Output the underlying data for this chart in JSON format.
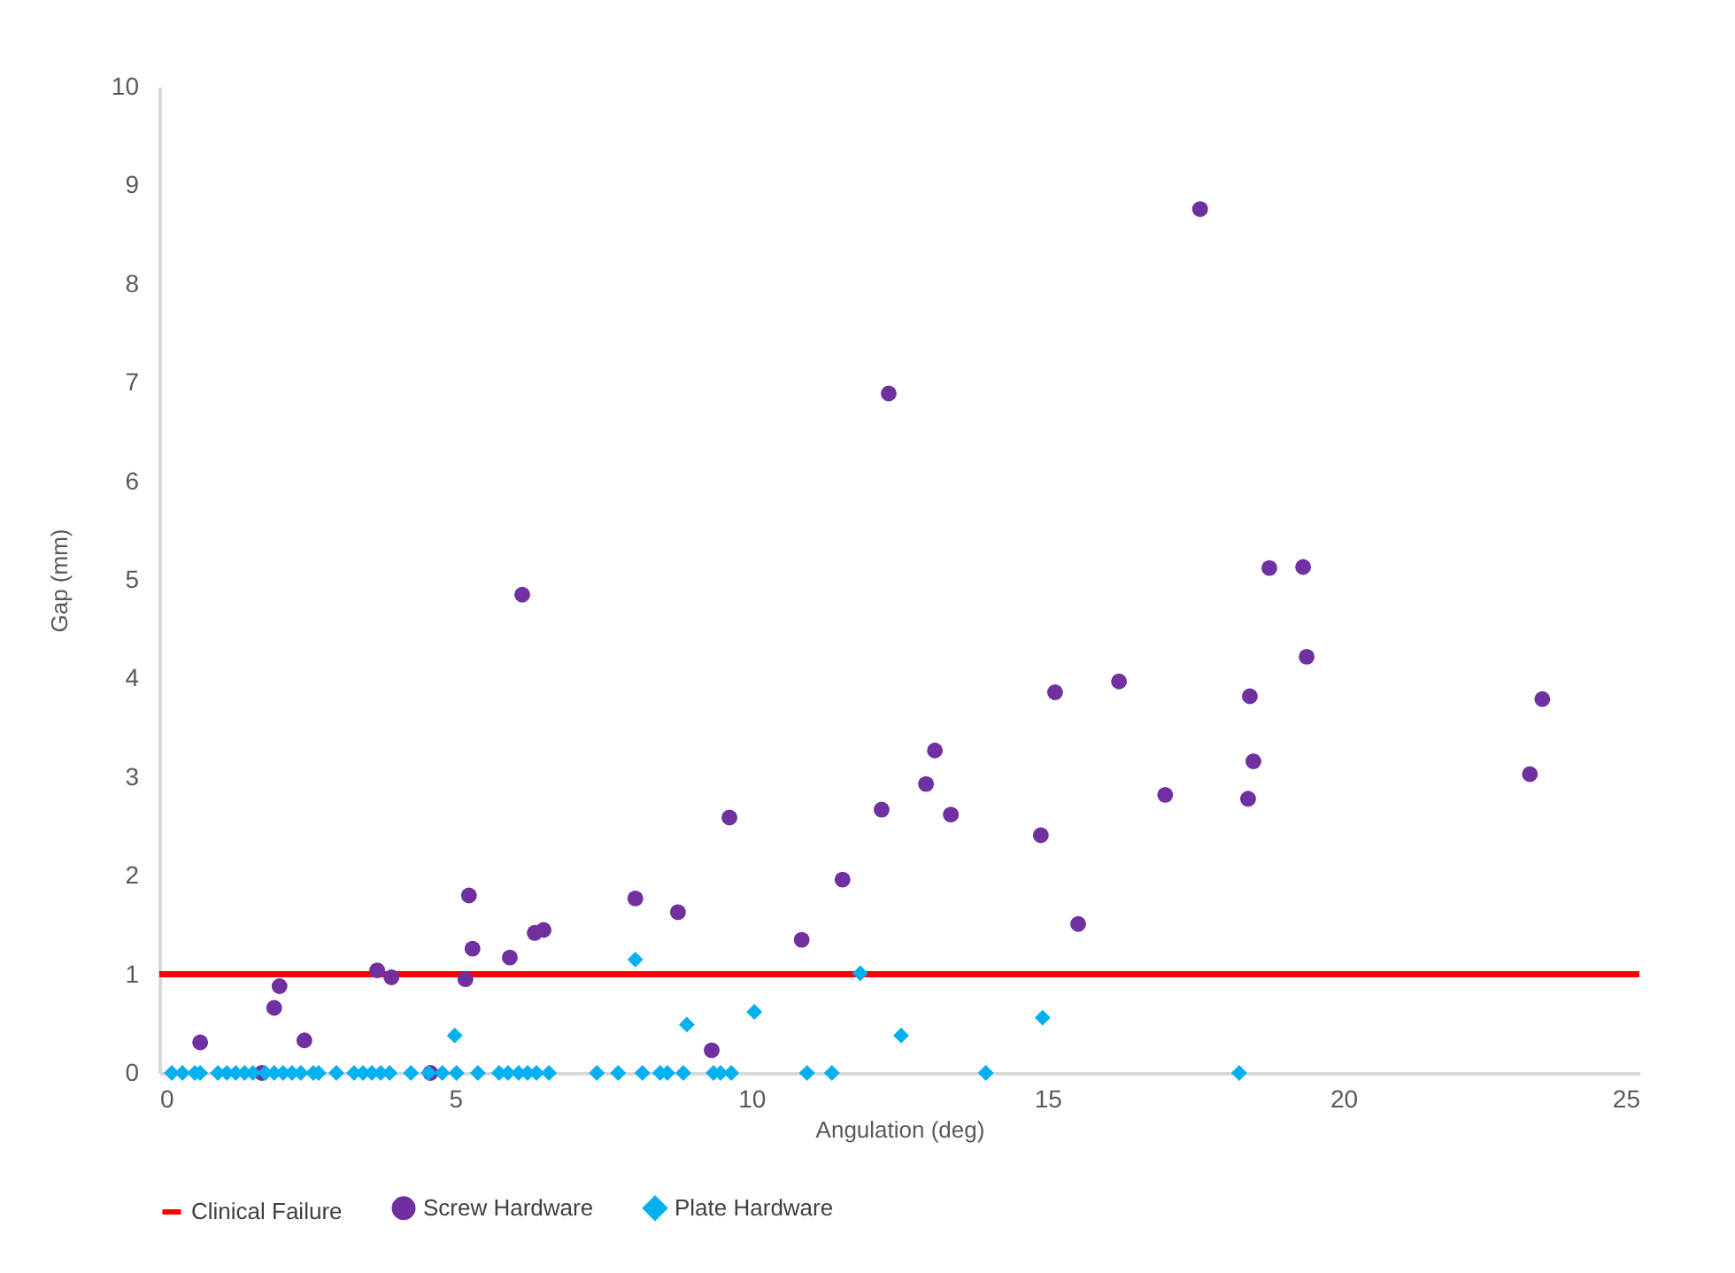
{
  "chart_data": {
    "type": "scatter",
    "xlabel": "Angulation (deg)",
    "ylabel": "Gap (mm)",
    "xlim": [
      0,
      25
    ],
    "xticks": [
      0,
      5,
      10,
      15,
      20,
      25
    ],
    "ylim": [
      0,
      10
    ],
    "yticks": [
      0,
      1,
      2,
      3,
      4,
      5,
      6,
      7,
      8,
      9,
      10
    ],
    "grid": false,
    "legend": "bottom",
    "ref_lines": [
      {
        "axis": "y",
        "value": 1,
        "label": "Clinical Failure",
        "color": "#ff0000",
        "line_style": "solid"
      }
    ],
    "series": [
      {
        "name": "Screw Hardware",
        "color": "#7030a0",
        "marker": "circle",
        "x": [
          0.69,
          1.94,
          2.03,
          2.45,
          1.73,
          3.68,
          3.92,
          4.58,
          5.17,
          5.23,
          5.29,
          5.92,
          6.34,
          6.49,
          6.13,
          8.04,
          8.76,
          9.33,
          9.63,
          10.85,
          11.54,
          12.2,
          12.32,
          12.95,
          13.1,
          13.37,
          14.89,
          15.13,
          15.52,
          16.21,
          16.99,
          17.58,
          18.39,
          18.42,
          18.48,
          18.75,
          19.32,
          19.38,
          23.15,
          23.36
        ],
        "values": [
          0.31,
          0.66,
          0.88,
          0.33,
          0,
          1.04,
          0.97,
          0,
          0.95,
          1.8,
          1.26,
          1.17,
          1.42,
          1.45,
          4.85,
          1.77,
          1.63,
          0.23,
          2.59,
          1.35,
          1.96,
          2.67,
          6.89,
          2.93,
          3.27,
          2.62,
          2.41,
          3.86,
          1.51,
          3.97,
          2.82,
          8.76,
          2.78,
          3.82,
          3.16,
          5.12,
          5.13,
          4.22,
          3.03,
          3.79
        ]
      },
      {
        "name": "Plate Hardware",
        "color": "#00b0f0",
        "marker": "diamond",
        "x": [
          0.21,
          0.39,
          0.6,
          0.69,
          0.99,
          1.14,
          1.29,
          1.44,
          1.58,
          1.79,
          1.94,
          2.09,
          2.24,
          2.39,
          2.6,
          2.69,
          2.99,
          3.29,
          3.44,
          3.59,
          3.74,
          3.89,
          4.25,
          4.55,
          4.78,
          5.02,
          5.38,
          5.74,
          5.89,
          6.07,
          6.22,
          6.37,
          6.58,
          4.99,
          7.39,
          7.75,
          8.16,
          8.46,
          8.58,
          8.85,
          9.36,
          9.48,
          9.66,
          10.94,
          11.36,
          13.96,
          8.04,
          8.91,
          10.05,
          11.84,
          12.53,
          14.92,
          18.24
        ],
        "values": [
          0,
          0,
          0,
          0,
          0,
          0,
          0,
          0,
          0,
          0,
          0,
          0,
          0,
          0,
          0,
          0,
          0,
          0,
          0,
          0,
          0,
          0,
          0,
          0,
          0,
          0,
          0,
          0,
          0,
          0,
          0,
          0,
          0,
          0.38,
          0,
          0,
          0,
          0,
          0,
          0,
          0,
          0,
          0,
          0,
          0,
          0,
          1.15,
          0.49,
          0.62,
          1.01,
          0.38,
          0.56,
          0
        ]
      }
    ]
  }
}
